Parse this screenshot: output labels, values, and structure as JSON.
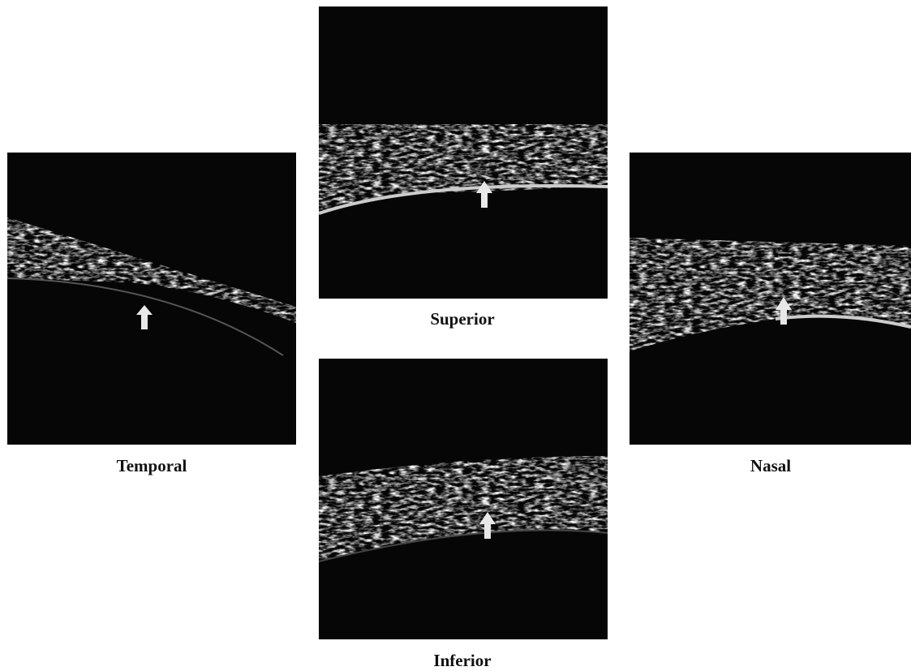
{
  "panels": [
    {
      "label": "Temporal"
    },
    {
      "label": "Superior"
    },
    {
      "label": "Nasal"
    },
    {
      "label": "Inferior"
    }
  ]
}
